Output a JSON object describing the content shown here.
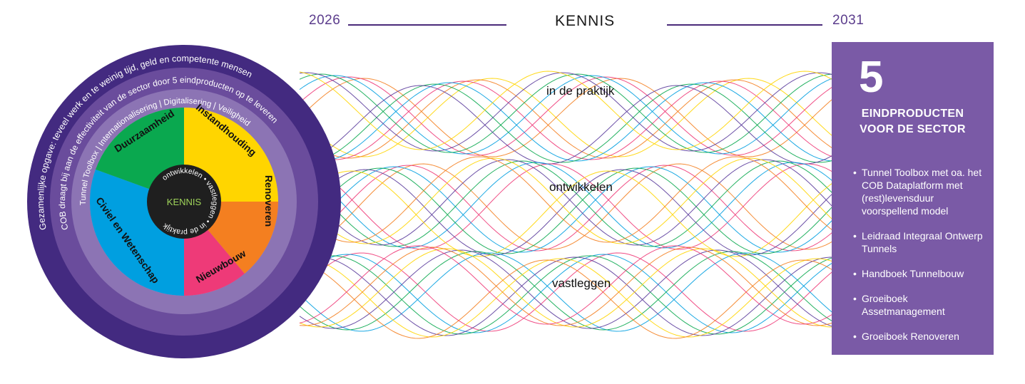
{
  "header": {
    "year_start": "2026",
    "title": "KENNIS",
    "year_end": "2031"
  },
  "waves": {
    "labels": [
      "in de praktijk",
      "ontwikkelen",
      "vastleggen"
    ]
  },
  "wheel": {
    "outer_ring_text": "Gezamenlijke opgave: teveel werk en te weinig tijd, geld en competente mensen",
    "second_ring_text": "COB draagt bij aan de effectiviteit van de sector door 5 eindproducten op te leveren",
    "third_ring_items": [
      "Tunnel Toolbox",
      "Internationalisering",
      "Digitalisering",
      "Veiligheid"
    ],
    "segments": [
      {
        "label": "Instandhouding",
        "color": "#ffd500"
      },
      {
        "label": "Renoveren",
        "color": "#f47f20"
      },
      {
        "label": "Nieuwbouw",
        "color": "#ee3a78"
      },
      {
        "label": "Civiel en Wetenschap",
        "color": "#009fe0"
      },
      {
        "label": "Duurzaamheid",
        "color": "#0aa84f"
      }
    ],
    "center_label": "KENNIS",
    "center_ring_words": [
      "ontwikkelen",
      "vastleggen",
      "in de praktijk"
    ],
    "colors": {
      "outer": "#432a80",
      "ring2": "#6a4c9c",
      "ring3": "#8c74b4",
      "ring4": "#a796c9",
      "center": "#1f1f1f",
      "center_text": "#9fd45a"
    }
  },
  "panel": {
    "number": "5",
    "heading_line1": "EINDPRODUCTEN",
    "heading_line2": "VOOR DE SECTOR",
    "items": [
      "Tunnel Toolbox met oa. het COB Dataplatform met (rest)levensduur voorspellend model",
      "Leidraad Integraal Ontwerp Tunnels",
      "Handboek Tunnelbouw",
      "Groeiboek Assetmanagement",
      "Groeiboek Renoveren"
    ],
    "color": "#7a5aa6"
  },
  "wave_colors": [
    "#ffd500",
    "#f47f20",
    "#ee3a78",
    "#009fe0",
    "#0aa84f",
    "#5b3c9c"
  ]
}
